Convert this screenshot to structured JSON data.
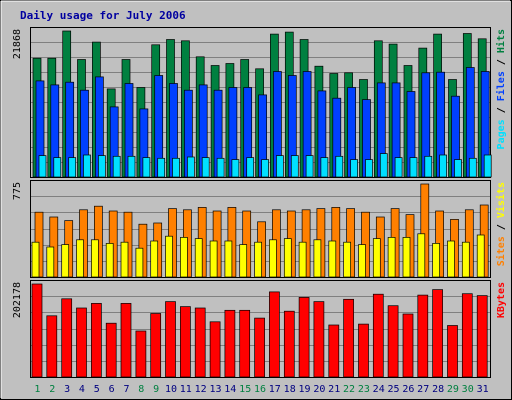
{
  "title": "Daily usage for July 2006",
  "chart_data": {
    "type": "bar",
    "days": [
      "1",
      "2",
      "3",
      "4",
      "5",
      "6",
      "7",
      "8",
      "9",
      "10",
      "11",
      "12",
      "13",
      "14",
      "15",
      "16",
      "17",
      "18",
      "19",
      "20",
      "21",
      "22",
      "23",
      "24",
      "25",
      "26",
      "27",
      "28",
      "29",
      "30",
      "31"
    ],
    "weekend_days": [
      "1",
      "2",
      "8",
      "9",
      "15",
      "16",
      "22",
      "23",
      "29",
      "30"
    ],
    "panels": [
      {
        "id": "hits",
        "ytick": "21868",
        "ymax": 21868,
        "legend": [
          "Pages",
          " / ",
          "Files",
          " / ",
          "Hits"
        ],
        "series": [
          {
            "name": "Hits",
            "color": "#008040",
            "values": [
              17800,
              17800,
              21868,
              17600,
              20200,
              13200,
              17600,
              13400,
              19800,
              20600,
              20400,
              18000,
              16700,
              17000,
              17600,
              16200,
              21400,
              21700,
              20600,
              16600,
              15500,
              15600,
              14600,
              20400,
              19900,
              16700,
              19300,
              21400,
              14600,
              21500,
              20700
            ]
          },
          {
            "name": "Files",
            "color": "#0040ff",
            "values": [
              14400,
              13800,
              14200,
              13000,
              15000,
              10500,
              14000,
              10200,
              15200,
              14000,
              13000,
              13800,
              13000,
              13400,
              13400,
              12300,
              15800,
              15200,
              15800,
              12900,
              11800,
              13400,
              11600,
              14100,
              14100,
              12800,
              15600,
              15700,
              12100,
              16400,
              15800
            ]
          },
          {
            "name": "Pages",
            "color": "#00e0ff",
            "values": [
              3200,
              2900,
              2900,
              3300,
              3200,
              3100,
              3100,
              2900,
              2800,
              2800,
              3000,
              2900,
              2800,
              2600,
              2900,
              2600,
              3200,
              3200,
              3200,
              2900,
              3100,
              2600,
              2600,
              3500,
              2900,
              2900,
              3100,
              3300,
              2600,
              2800,
              3300
            ]
          }
        ]
      },
      {
        "id": "visits",
        "ytick": "775",
        "ymax": 775,
        "legend": [
          "Sites",
          " / ",
          "Visits"
        ],
        "series": [
          {
            "name": "Visits",
            "color": "#ff8000",
            "values": [
              540,
              500,
              470,
              560,
              590,
              550,
              540,
              440,
              450,
              570,
              560,
              580,
              550,
              580,
              550,
              460,
              560,
              550,
              560,
              570,
              580,
              570,
              540,
              500,
              570,
              520,
              775,
              550,
              480,
              560,
              600
            ]
          },
          {
            "name": "Sites",
            "color": "#ffff00",
            "values": [
              290,
              250,
              270,
              310,
              310,
              280,
              290,
              240,
              300,
              340,
              330,
              320,
              300,
              300,
              270,
              290,
              310,
              320,
              290,
              310,
              300,
              290,
              270,
              320,
              330,
              330,
              360,
              280,
              300,
              290,
              350
            ]
          }
        ]
      },
      {
        "id": "kbytes",
        "ytick": "202178",
        "ymax": 202178,
        "legend": [
          "KBytes"
        ],
        "series": [
          {
            "name": "KBytes",
            "color": "#ff0000",
            "values": [
              202178,
              133000,
              170000,
              150000,
              160000,
              117000,
              160000,
              100000,
              138000,
              164000,
              153000,
              150000,
              120000,
              145000,
              145000,
              128000,
              185000,
              143000,
              173000,
              164000,
              113000,
              169000,
              115000,
              180000,
              155000,
              137000,
              178000,
              190000,
              112000,
              181000,
              177000
            ]
          }
        ]
      }
    ]
  }
}
